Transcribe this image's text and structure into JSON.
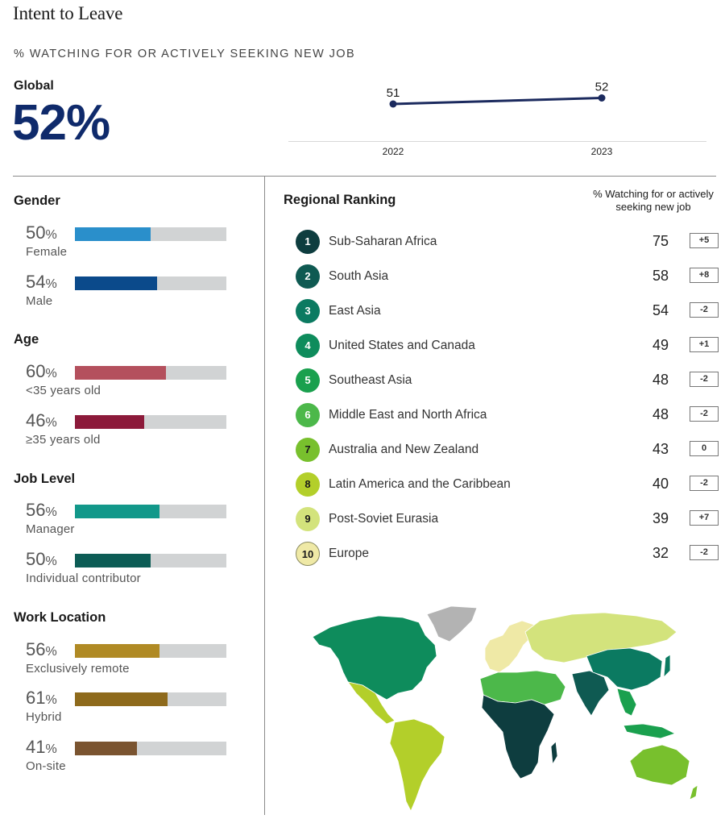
{
  "title": "Intent to Leave",
  "subtitle": "% WATCHING FOR OR ACTIVELY SEEKING NEW JOB",
  "global": {
    "label": "Global",
    "value": "52%"
  },
  "chart_data": [
    {
      "type": "line",
      "x": [
        "2022",
        "2023"
      ],
      "series": [
        {
          "values": [
            51,
            52
          ]
        }
      ],
      "data_labels": [
        "51",
        "52"
      ],
      "ylim": [
        45,
        55
      ],
      "color": "#1b2a5e",
      "grid": false
    },
    {
      "type": "bar",
      "orientation": "horizontal",
      "groups": [
        {
          "title": "Gender",
          "items": [
            {
              "pct": "50",
              "value": 50,
              "label": "Female",
              "color": "#2a8fcb"
            },
            {
              "pct": "54",
              "value": 54,
              "label": "Male",
              "color": "#0b4a8b"
            }
          ]
        },
        {
          "title": "Age",
          "items": [
            {
              "pct": "60",
              "value": 60,
              "label": "<35 years old",
              "color": "#b4505d"
            },
            {
              "pct": "46",
              "value": 46,
              "label": "≥35 years old",
              "color": "#8c1a3a"
            }
          ]
        },
        {
          "title": "Job Level",
          "items": [
            {
              "pct": "56",
              "value": 56,
              "label": "Manager",
              "color": "#12988a"
            },
            {
              "pct": "50",
              "value": 50,
              "label": "Individual contributor",
              "color": "#0c5c55"
            }
          ]
        },
        {
          "title": "Work Location",
          "items": [
            {
              "pct": "56",
              "value": 56,
              "label": "Exclusively remote",
              "color": "#b08a24"
            },
            {
              "pct": "61",
              "value": 61,
              "label": "Hybrid",
              "color": "#8e6a1c"
            },
            {
              "pct": "41",
              "value": 41,
              "label": "On-site",
              "color": "#7a5430"
            }
          ]
        }
      ],
      "pct_symbol": "%",
      "xlim": [
        0,
        100
      ]
    },
    {
      "type": "table",
      "title": "Regional Ranking",
      "column_header": "% Watching for or actively seeking new job",
      "rows": [
        {
          "rank": "1",
          "region": "Sub-Saharan Africa",
          "value": "75",
          "change": "+5",
          "color": "#0e3d3f",
          "text_color": "#ffffff"
        },
        {
          "rank": "2",
          "region": "South Asia",
          "value": "58",
          "change": "+8",
          "color": "#0f5a52",
          "text_color": "#ffffff"
        },
        {
          "rank": "3",
          "region": "East Asia",
          "value": "54",
          "change": "-2",
          "color": "#0b7a61",
          "text_color": "#ffffff"
        },
        {
          "rank": "4",
          "region": "United States and Canada",
          "value": "49",
          "change": "+1",
          "color": "#0e8c5c",
          "text_color": "#ffffff"
        },
        {
          "rank": "5",
          "region": "Southeast Asia",
          "value": "48",
          "change": "-2",
          "color": "#1aa04e",
          "text_color": "#ffffff"
        },
        {
          "rank": "6",
          "region": "Middle East and North Africa",
          "value": "48",
          "change": "-2",
          "color": "#4cb84a",
          "text_color": "#ffffff"
        },
        {
          "rank": "7",
          "region": "Australia and New Zealand",
          "value": "43",
          "change": "0",
          "color": "#78c02d",
          "text_color": "#1a1a1a"
        },
        {
          "rank": "8",
          "region": "Latin America and the Caribbean",
          "value": "40",
          "change": "-2",
          "color": "#b3cf2a",
          "text_color": "#1a1a1a"
        },
        {
          "rank": "9",
          "region": "Post-Soviet Eurasia",
          "value": "39",
          "change": "+7",
          "color": "#d3e37c",
          "text_color": "#1a1a1a"
        },
        {
          "rank": "10",
          "region": "Europe",
          "value": "32",
          "change": "-2",
          "color": "#efe9a6",
          "text_color": "#1a1a1a"
        }
      ]
    }
  ],
  "map": {
    "no_data_color": "#b3b3b3"
  }
}
